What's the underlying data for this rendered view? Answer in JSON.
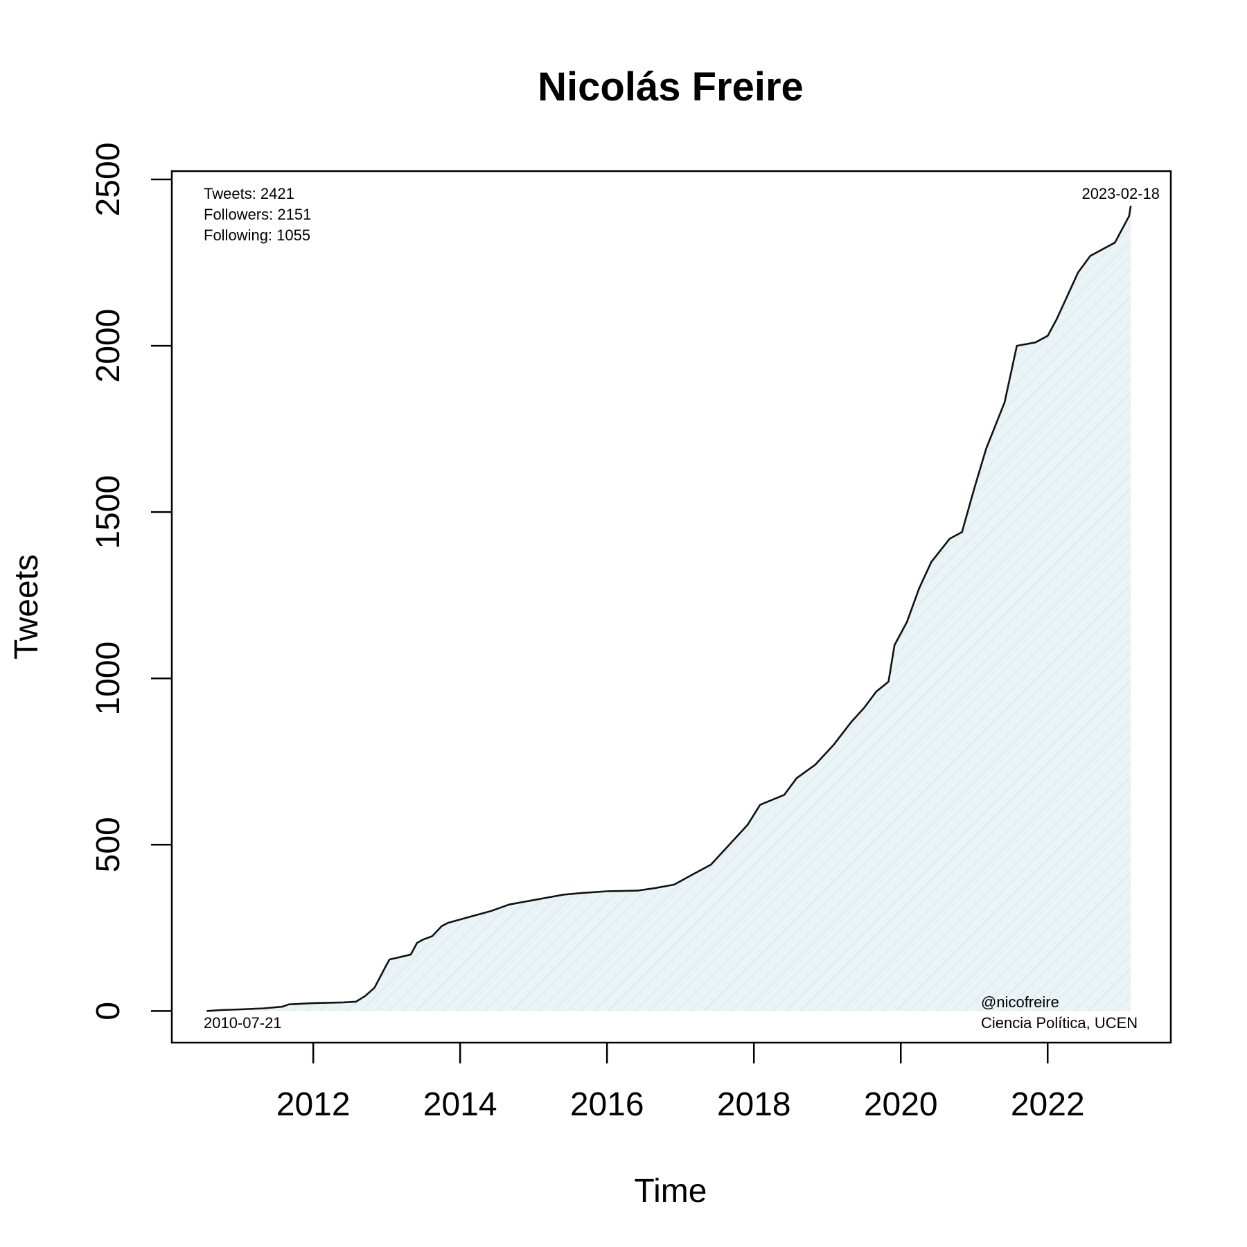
{
  "chart_data": {
    "type": "area",
    "title": "Nicolás Freire",
    "xlabel": "Time",
    "ylabel": "Tweets",
    "xlim": [
      "2010-01-28",
      "2023-09-05"
    ],
    "ylim": [
      -95,
      2525
    ],
    "x_ticks": [
      "2012",
      "2014",
      "2016",
      "2018",
      "2020",
      "2022"
    ],
    "y_ticks": [
      "0",
      "500",
      "1000",
      "1500",
      "2000",
      "2500"
    ],
    "grid": false,
    "fill_color": "#e8f2f5",
    "line_color": "#111111",
    "annotations": {
      "top_left": [
        "Tweets: 2421",
        "Followers: 2151",
        "Following: 1055"
      ],
      "top_right": "2023-02-18",
      "bottom_left": "2010-07-21",
      "bottom_right": [
        "@nicofreire",
        "Ciencia Política, UCEN"
      ]
    },
    "series": [
      {
        "x": [
          "2010-07-21",
          "2010-10-01",
          "2011-01-01",
          "2011-05-01",
          "2011-08-01",
          "2011-09-01",
          "2012-01-01",
          "2012-06-01",
          "2012-08-01",
          "2012-09-15",
          "2012-11-01",
          "2013-01-01",
          "2013-01-15",
          "2013-02-20",
          "2013-05-01",
          "2013-06-01",
          "2013-07-01",
          "2013-08-15",
          "2013-10-01",
          "2013-11-01",
          "2014-01-01",
          "2014-03-01",
          "2014-06-01",
          "2014-09-01",
          "2014-12-01",
          "2015-03-01",
          "2015-06-01",
          "2015-09-01",
          "2016-01-01",
          "2016-06-01",
          "2016-09-01",
          "2016-12-01",
          "2017-03-01",
          "2017-06-01",
          "2017-09-01",
          "2017-12-01",
          "2018-02-01",
          "2018-06-01",
          "2018-08-01",
          "2018-11-01",
          "2019-02-01",
          "2019-05-01",
          "2019-07-01",
          "2019-09-01",
          "2019-11-01",
          "2019-12-01",
          "2020-02-01",
          "2020-04-01",
          "2020-06-01",
          "2020-09-01",
          "2020-11-01",
          "2021-01-01",
          "2021-03-01",
          "2021-06-01",
          "2021-08-01",
          "2021-11-01",
          "2022-01-01",
          "2022-02-15",
          "2022-06-01",
          "2022-08-01",
          "2022-10-01",
          "2022-12-01",
          "2023-02-10",
          "2023-02-18"
        ],
        "y": [
          0,
          3,
          5,
          8,
          13,
          20,
          24,
          26,
          28,
          45,
          70,
          140,
          155,
          160,
          170,
          205,
          215,
          225,
          255,
          265,
          275,
          285,
          300,
          320,
          330,
          340,
          350,
          355,
          360,
          362,
          370,
          380,
          410,
          440,
          500,
          560,
          620,
          650,
          700,
          740,
          800,
          870,
          910,
          960,
          990,
          1100,
          1170,
          1270,
          1350,
          1420,
          1440,
          1570,
          1690,
          1830,
          2000,
          2010,
          2030,
          2080,
          2220,
          2270,
          2290,
          2310,
          2390,
          2421
        ]
      }
    ]
  }
}
